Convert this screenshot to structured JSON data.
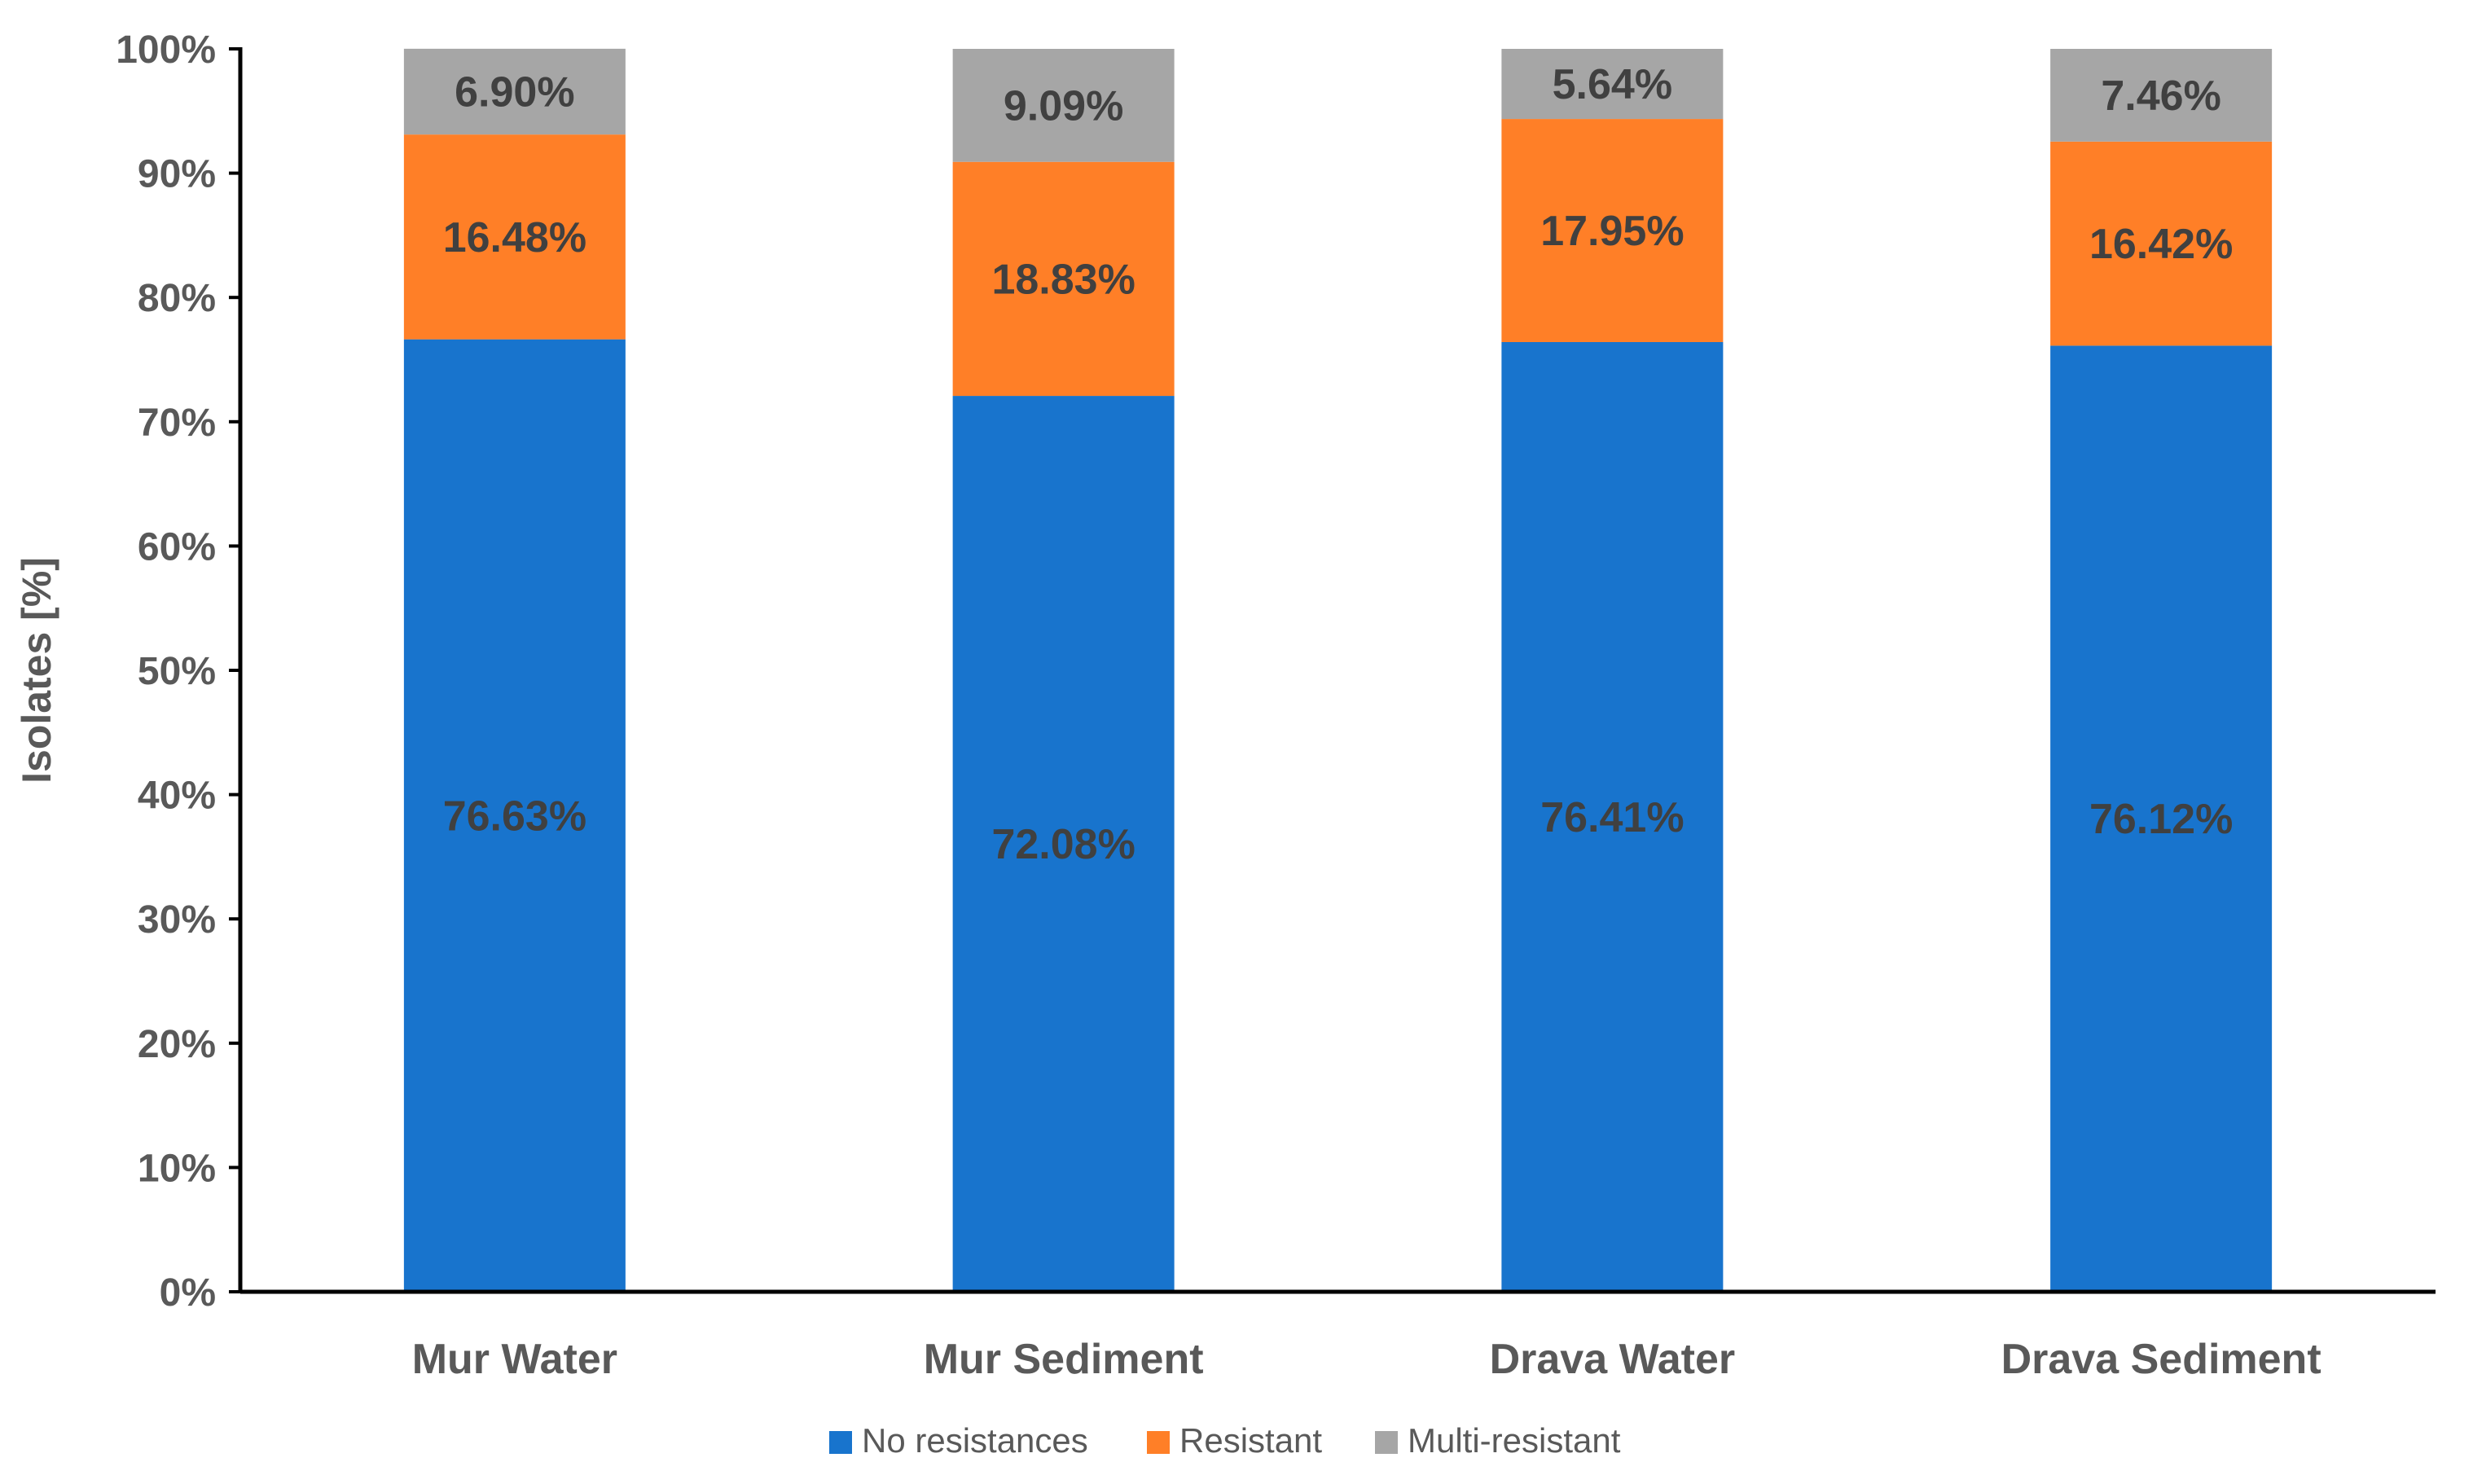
{
  "chart_data": {
    "type": "bar",
    "stacked": true,
    "categories": [
      "Mur Water",
      "Mur Sediment",
      "Drava Water",
      "Drava Sediment"
    ],
    "series": [
      {
        "name": "No resistances",
        "color": "#1874CD",
        "values": [
          76.63,
          72.08,
          76.41,
          76.12
        ],
        "labels": [
          "76.63%",
          "72.08%",
          "76.41%",
          "76.12%"
        ]
      },
      {
        "name": "Resistant",
        "color": "#FF7F27",
        "values": [
          16.48,
          18.83,
          17.95,
          16.42
        ],
        "labels": [
          "16.48%",
          "18.83%",
          "17.95%",
          "16.42%"
        ]
      },
      {
        "name": "Multi-resistant",
        "color": "#A6A6A6",
        "values": [
          6.9,
          9.09,
          5.64,
          7.46
        ],
        "labels": [
          "6.90%",
          "9.09%",
          "5.64%",
          "7.46%"
        ]
      }
    ],
    "ylabel": "Isolates [%]",
    "xlabel": "",
    "ylim": [
      0,
      100
    ],
    "yticks": [
      0,
      10,
      20,
      30,
      40,
      50,
      60,
      70,
      80,
      90,
      100
    ],
    "ytick_labels": [
      "0%",
      "10%",
      "20%",
      "30%",
      "40%",
      "50%",
      "60%",
      "70%",
      "80%",
      "90%",
      "100%"
    ],
    "grid": false,
    "legend": "bottom"
  }
}
